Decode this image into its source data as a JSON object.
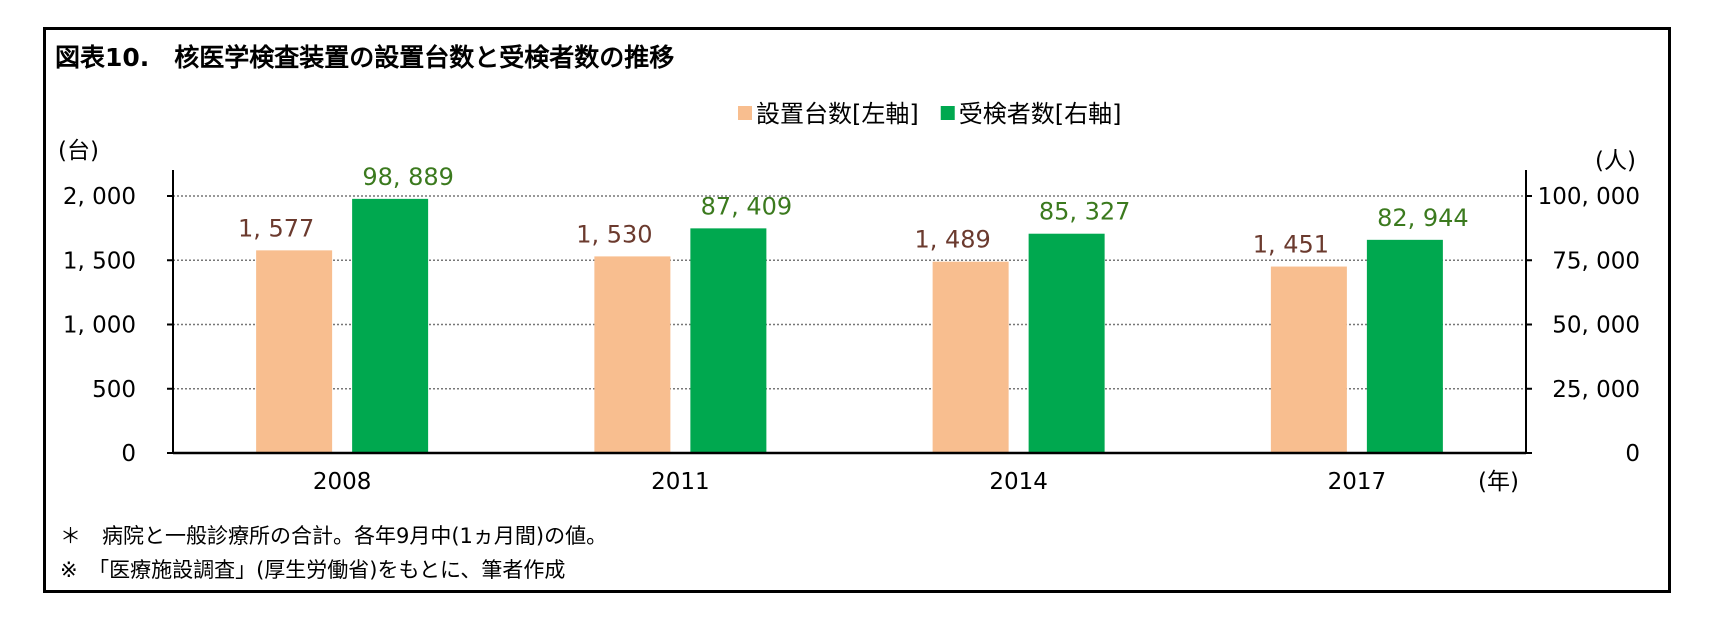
{
  "title": "図表10.　核医学検査装置の設置台数と受検者数の推移",
  "notes": [
    "＊　病院と一般診療所の合計。各年9月中(1ヵ月間)の値。",
    "※　「医療施設調査」(厚生労働省)をもとに、筆者作成"
  ],
  "chart_data": {
    "type": "bar",
    "categories": [
      "2008",
      "2011",
      "2014",
      "2017"
    ],
    "series": [
      {
        "name": "設置台数[左軸]",
        "axis": "left",
        "color": "#f8be8f",
        "values": [
          1577,
          1530,
          1489,
          1451
        ],
        "labels": [
          "1, 577",
          "1, 530",
          "1, 489",
          "1, 451"
        ],
        "label_color": "#6b3a2e"
      },
      {
        "name": "受検者数[右軸]",
        "axis": "right",
        "color": "#00a84f",
        "values": [
          98889,
          87409,
          85327,
          82944
        ],
        "labels": [
          "98, 889",
          "87, 409",
          "85, 327",
          "82, 944"
        ],
        "label_color": "#3b7a1e"
      }
    ],
    "left_axis": {
      "unit": "(台)",
      "ylim": [
        0,
        2000
      ],
      "ticks": [
        0,
        500,
        1000,
        1500,
        2000
      ],
      "tick_labels": [
        "0",
        "500",
        "1, 000",
        "1, 500",
        "2, 000"
      ]
    },
    "right_axis": {
      "unit": "(人)",
      "ylim": [
        0,
        100000
      ],
      "ticks": [
        0,
        25000,
        50000,
        75000,
        100000
      ],
      "tick_labels": [
        "0",
        "25, 000",
        "50, 000",
        "75, 000",
        "100, 000"
      ]
    },
    "x_unit": "(年)",
    "grid": true,
    "legend": "top-center"
  }
}
